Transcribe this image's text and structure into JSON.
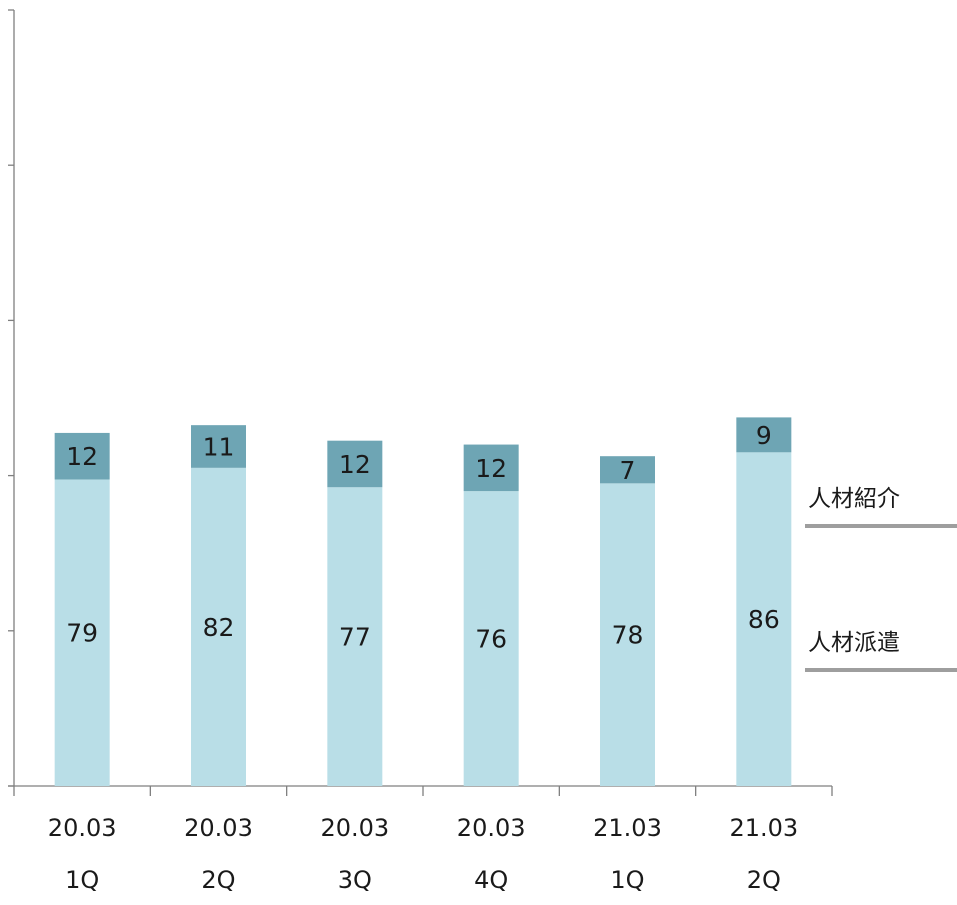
{
  "chart_data": {
    "type": "bar",
    "stacked": true,
    "categories": [
      [
        "20.03",
        "1Q"
      ],
      [
        "20.03",
        "2Q"
      ],
      [
        "20.03",
        "3Q"
      ],
      [
        "20.03",
        "4Q"
      ],
      [
        "21.03",
        "1Q"
      ],
      [
        "21.03",
        "2Q"
      ]
    ],
    "series": [
      {
        "name": "人材派遣",
        "values": [
          79,
          82,
          77,
          76,
          78,
          86
        ],
        "color": "#b9dee7"
      },
      {
        "name": "人材紹介",
        "values": [
          12,
          11,
          12,
          12,
          7,
          9
        ],
        "color": "#6ea5b4"
      }
    ],
    "ylim": [
      0,
      200
    ],
    "grid": false,
    "legend_placement": "right",
    "axis_color": "#7f7f7f",
    "legend_line_color": "#9e9e9e"
  }
}
